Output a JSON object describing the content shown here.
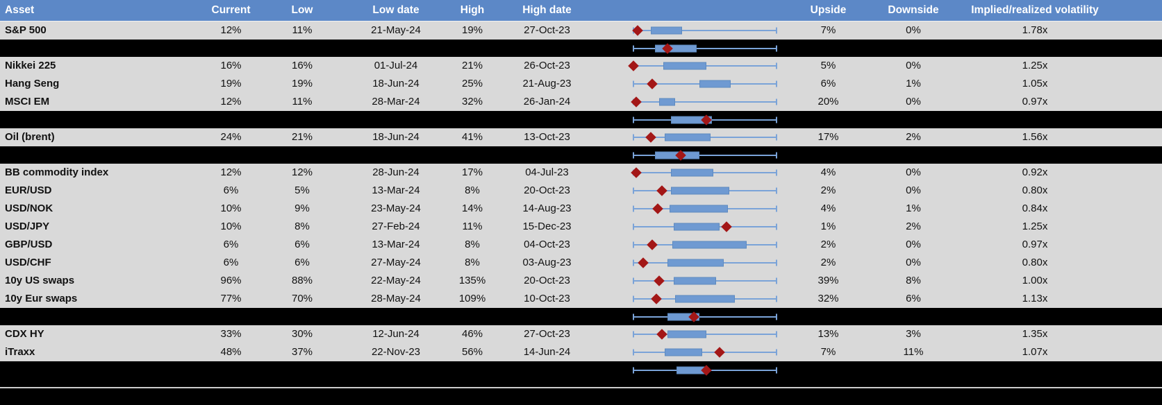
{
  "colors": {
    "header_bg": "#5c88c7",
    "row_bg": "#d9d9d9",
    "separator_bg": "#000000",
    "box_fill": "#6f9ad2",
    "whisker": "#7aa3d8",
    "marker_diamond": "#a31717",
    "header_text": "#ffffff",
    "body_text": "#111111"
  },
  "chart_data": {
    "type": "table",
    "title": "Asset volatility overview with box-and-whisker of implied volatility range",
    "headers": {
      "asset": "Asset",
      "current": "Current",
      "low": "Low",
      "low_date": "Low date",
      "high": "High",
      "high_date": "High date",
      "upside": "Upside",
      "downside": "Downside",
      "implied_realized": "Implied/realized volatility"
    },
    "boxplot_layout": {
      "orientation": "horizontal",
      "track_range": [
        0,
        1
      ],
      "note": "q1/q3/marker are normalized 0-1 positions along whisker track; whiskers span full track; red diamond = current level"
    },
    "rows": [
      {
        "kind": "data",
        "asset": "S&P 500",
        "current": "12%",
        "low": "11%",
        "low_date": "21-May-24",
        "high": "19%",
        "high_date": "27-Oct-23",
        "upside": "7%",
        "downside": "0%",
        "implied_realized": "1.78x",
        "box": {
          "whisker_lo": 0.0,
          "q1": 0.12,
          "q3": 0.34,
          "whisker_hi": 1.0,
          "marker": 0.03
        }
      },
      {
        "kind": "separator",
        "box": {
          "whisker_lo": 0.0,
          "q1": 0.15,
          "q3": 0.44,
          "whisker_hi": 1.0,
          "marker": 0.24
        }
      },
      {
        "kind": "data",
        "asset": "Nikkei 225",
        "current": "16%",
        "low": "16%",
        "low_date": "01-Jul-24",
        "high": "21%",
        "high_date": "26-Oct-23",
        "upside": "5%",
        "downside": "0%",
        "implied_realized": "1.25x",
        "box": {
          "whisker_lo": 0.0,
          "q1": 0.21,
          "q3": 0.51,
          "whisker_hi": 1.0,
          "marker": 0.0
        }
      },
      {
        "kind": "data",
        "asset": "Hang Seng",
        "current": "19%",
        "low": "19%",
        "low_date": "18-Jun-24",
        "high": "25%",
        "high_date": "21-Aug-23",
        "upside": "6%",
        "downside": "1%",
        "implied_realized": "1.05x",
        "box": {
          "whisker_lo": 0.0,
          "q1": 0.46,
          "q3": 0.68,
          "whisker_hi": 1.0,
          "marker": 0.13
        }
      },
      {
        "kind": "data",
        "asset": "MSCI EM",
        "current": "12%",
        "low": "11%",
        "low_date": "28-Mar-24",
        "high": "32%",
        "high_date": "26-Jan-24",
        "upside": "20%",
        "downside": "0%",
        "implied_realized": "0.97x",
        "box": {
          "whisker_lo": 0.0,
          "q1": 0.18,
          "q3": 0.29,
          "whisker_hi": 1.0,
          "marker": 0.02
        }
      },
      {
        "kind": "separator",
        "box": {
          "whisker_lo": 0.0,
          "q1": 0.26,
          "q3": 0.55,
          "whisker_hi": 1.0,
          "marker": 0.51
        }
      },
      {
        "kind": "data",
        "asset": "Oil (brent)",
        "current": "24%",
        "low": "21%",
        "low_date": "18-Jun-24",
        "high": "41%",
        "high_date": "13-Oct-23",
        "upside": "17%",
        "downside": "2%",
        "implied_realized": "1.56x",
        "box": {
          "whisker_lo": 0.0,
          "q1": 0.22,
          "q3": 0.54,
          "whisker_hi": 1.0,
          "marker": 0.12
        }
      },
      {
        "kind": "separator",
        "box": {
          "whisker_lo": 0.0,
          "q1": 0.15,
          "q3": 0.46,
          "whisker_hi": 1.0,
          "marker": 0.33
        }
      },
      {
        "kind": "data",
        "asset": "BB commodity index",
        "current": "12%",
        "low": "12%",
        "low_date": "28-Jun-24",
        "high": "17%",
        "high_date": "04-Jul-23",
        "upside": "4%",
        "downside": "0%",
        "implied_realized": "0.92x",
        "box": {
          "whisker_lo": 0.0,
          "q1": 0.26,
          "q3": 0.56,
          "whisker_hi": 1.0,
          "marker": 0.02
        }
      },
      {
        "kind": "data",
        "asset": "EUR/USD",
        "current": "6%",
        "low": "5%",
        "low_date": "13-Mar-24",
        "high": "8%",
        "high_date": "20-Oct-23",
        "upside": "2%",
        "downside": "0%",
        "implied_realized": "0.80x",
        "box": {
          "whisker_lo": 0.0,
          "q1": 0.26,
          "q3": 0.67,
          "whisker_hi": 1.0,
          "marker": 0.2
        }
      },
      {
        "kind": "data",
        "asset": "USD/NOK",
        "current": "10%",
        "low": "9%",
        "low_date": "23-May-24",
        "high": "14%",
        "high_date": "14-Aug-23",
        "upside": "4%",
        "downside": "1%",
        "implied_realized": "0.84x",
        "box": {
          "whisker_lo": 0.0,
          "q1": 0.25,
          "q3": 0.66,
          "whisker_hi": 1.0,
          "marker": 0.17
        }
      },
      {
        "kind": "data",
        "asset": "USD/JPY",
        "current": "10%",
        "low": "8%",
        "low_date": "27-Feb-24",
        "high": "11%",
        "high_date": "15-Dec-23",
        "upside": "1%",
        "downside": "2%",
        "implied_realized": "1.25x",
        "box": {
          "whisker_lo": 0.0,
          "q1": 0.28,
          "q3": 0.6,
          "whisker_hi": 1.0,
          "marker": 0.65
        }
      },
      {
        "kind": "data",
        "asset": "GBP/USD",
        "current": "6%",
        "low": "6%",
        "low_date": "13-Mar-24",
        "high": "8%",
        "high_date": "04-Oct-23",
        "upside": "2%",
        "downside": "0%",
        "implied_realized": "0.97x",
        "box": {
          "whisker_lo": 0.0,
          "q1": 0.27,
          "q3": 0.79,
          "whisker_hi": 1.0,
          "marker": 0.13
        }
      },
      {
        "kind": "data",
        "asset": "USD/CHF",
        "current": "6%",
        "low": "6%",
        "low_date": "27-May-24",
        "high": "8%",
        "high_date": "03-Aug-23",
        "upside": "2%",
        "downside": "0%",
        "implied_realized": "0.80x",
        "box": {
          "whisker_lo": 0.0,
          "q1": 0.24,
          "q3": 0.63,
          "whisker_hi": 1.0,
          "marker": 0.07
        }
      },
      {
        "kind": "data",
        "asset": "10y US swaps",
        "current": "96%",
        "low": "88%",
        "low_date": "22-May-24",
        "high": "135%",
        "high_date": "20-Oct-23",
        "upside": "39%",
        "downside": "8%",
        "implied_realized": "1.00x",
        "box": {
          "whisker_lo": 0.0,
          "q1": 0.28,
          "q3": 0.58,
          "whisker_hi": 1.0,
          "marker": 0.18
        }
      },
      {
        "kind": "data",
        "asset": "10y Eur swaps",
        "current": "77%",
        "low": "70%",
        "low_date": "28-May-24",
        "high": "109%",
        "high_date": "10-Oct-23",
        "upside": "32%",
        "downside": "6%",
        "implied_realized": "1.13x",
        "box": {
          "whisker_lo": 0.0,
          "q1": 0.29,
          "q3": 0.71,
          "whisker_hi": 1.0,
          "marker": 0.16
        }
      },
      {
        "kind": "separator",
        "box": {
          "whisker_lo": 0.0,
          "q1": 0.24,
          "q3": 0.46,
          "whisker_hi": 1.0,
          "marker": 0.42
        }
      },
      {
        "kind": "data",
        "asset": "CDX HY",
        "current": "33%",
        "low": "30%",
        "low_date": "12-Jun-24",
        "high": "46%",
        "high_date": "27-Oct-23",
        "upside": "13%",
        "downside": "3%",
        "implied_realized": "1.35x",
        "box": {
          "whisker_lo": 0.0,
          "q1": 0.24,
          "q3": 0.51,
          "whisker_hi": 1.0,
          "marker": 0.2
        }
      },
      {
        "kind": "data",
        "asset": "iTraxx",
        "current": "48%",
        "low": "37%",
        "low_date": "22-Nov-23",
        "high": "56%",
        "high_date": "14-Jun-24",
        "upside": "7%",
        "downside": "11%",
        "implied_realized": "1.07x",
        "box": {
          "whisker_lo": 0.0,
          "q1": 0.22,
          "q3": 0.48,
          "whisker_hi": 1.0,
          "marker": 0.6
        }
      },
      {
        "kind": "separator",
        "box": {
          "whisker_lo": 0.0,
          "q1": 0.3,
          "q3": 0.52,
          "whisker_hi": 1.0,
          "marker": 0.51
        }
      }
    ]
  }
}
